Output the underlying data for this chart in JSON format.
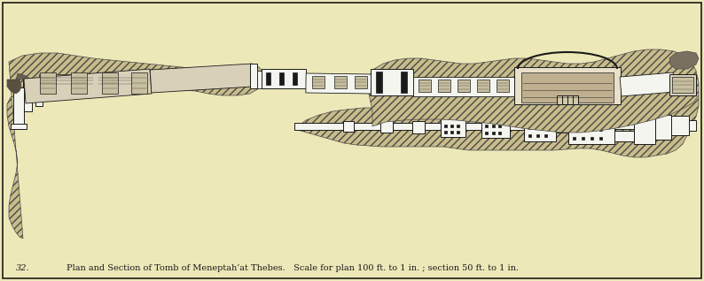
{
  "background_color": "#ede8b8",
  "border_color": "#2a2a2a",
  "caption_number": "32.",
  "caption_text": "Plan and Section of Tomb of Meneptah’at Thebes.   Scale for plan 100 ft. to 1 in. ; section 50 ft. to 1 in.",
  "caption_fontsize": 7.0,
  "fig_width": 7.94,
  "fig_height": 3.18,
  "dpi": 100,
  "rock_color": "#c8bc8a",
  "rock_edge": "#4a4a4a",
  "ink": "#1a1a1a",
  "white": "#f5f5f0",
  "gray": "#a0988a"
}
